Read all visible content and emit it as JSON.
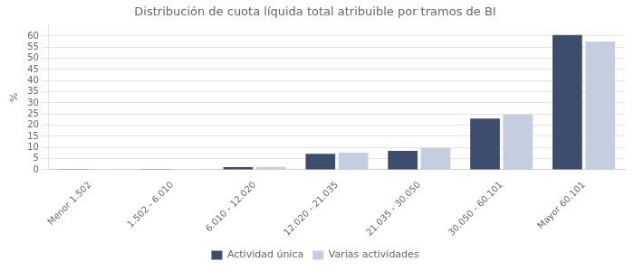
{
  "chart_data": {
    "type": "bar",
    "title": "Distribución de cuota líquida total atribuible por tramos de BI",
    "categories": [
      "Menor 1.502",
      "1.502 - 6.010",
      "6.010 - 12.020",
      "12.020 - 21.035",
      "21.035 - 30.050",
      "30.050 - 60.101",
      "Mayor 60.101"
    ],
    "series": [
      {
        "name": "Actividad única",
        "color": "#3d4d6e",
        "values": [
          0.1,
          0.1,
          1.2,
          7.2,
          8.5,
          23.0,
          60.5
        ]
      },
      {
        "name": "Varias actividades",
        "color": "#c5cde0",
        "values": [
          0.1,
          0.1,
          1.3,
          7.7,
          9.8,
          24.8,
          57.5
        ]
      }
    ],
    "ylabel": "%",
    "ylim": [
      0,
      65
    ],
    "yticks": [
      0,
      5,
      10,
      15,
      20,
      25,
      30,
      35,
      40,
      45,
      50,
      55,
      60
    ],
    "grid": true,
    "legend": "bottom"
  }
}
